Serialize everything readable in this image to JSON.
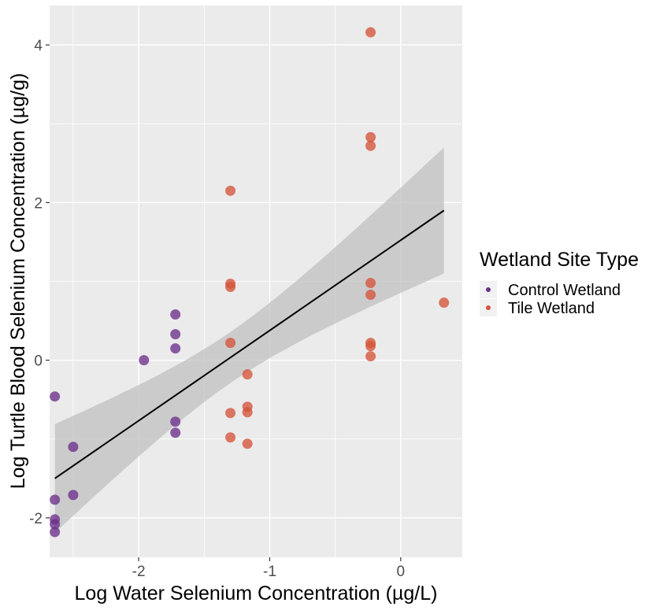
{
  "chart_data": {
    "type": "scatter",
    "xlabel": "Log Water Selenium Concentration (µg/L)",
    "ylabel": "Log Turtle Blood Selenium Concentration (µg/g)",
    "xlim": [
      -2.68,
      0.47
    ],
    "ylim": [
      -2.5,
      4.5
    ],
    "x_ticks": [
      -2,
      -1,
      0
    ],
    "x_tick_labels": [
      "-2",
      "-1",
      "0"
    ],
    "y_ticks": [
      -2,
      0,
      2,
      4
    ],
    "y_tick_labels": [
      "-2",
      "0",
      "2",
      "4"
    ],
    "grid": true,
    "legend": {
      "title": "Wetland Site Type",
      "position": "right",
      "entries": [
        "Control Wetland",
        "Tile Wetland"
      ]
    },
    "colors": {
      "Control Wetland": "#6b2f8a",
      "Tile Wetland": "#d4533a",
      "panel": "#ebebeb",
      "grid": "#ffffff",
      "ribbon": "#bdbdbd",
      "fit_line": "#000000"
    },
    "series": [
      {
        "name": "Control Wetland",
        "points": [
          [
            -2.64,
            -0.46
          ],
          [
            -2.64,
            -1.77
          ],
          [
            -2.64,
            -2.02
          ],
          [
            -2.64,
            -2.08
          ],
          [
            -2.64,
            -2.18
          ],
          [
            -2.5,
            -1.1
          ],
          [
            -2.5,
            -1.71
          ],
          [
            -1.96,
            0.0
          ],
          [
            -1.72,
            0.58
          ],
          [
            -1.72,
            0.33
          ],
          [
            -1.72,
            0.15
          ],
          [
            -1.72,
            -0.78
          ],
          [
            -1.72,
            -0.92
          ]
        ]
      },
      {
        "name": "Tile Wetland",
        "points": [
          [
            -1.3,
            2.15
          ],
          [
            -1.3,
            0.97
          ],
          [
            -1.3,
            0.93
          ],
          [
            -1.3,
            0.22
          ],
          [
            -1.3,
            -0.67
          ],
          [
            -1.3,
            -0.98
          ],
          [
            -1.17,
            -0.18
          ],
          [
            -1.17,
            -0.59
          ],
          [
            -1.17,
            -0.66
          ],
          [
            -1.17,
            -1.06
          ],
          [
            -0.23,
            4.16
          ],
          [
            -0.23,
            2.83
          ],
          [
            -0.23,
            2.72
          ],
          [
            -0.23,
            0.98
          ],
          [
            -0.23,
            0.83
          ],
          [
            -0.23,
            0.22
          ],
          [
            -0.23,
            0.18
          ],
          [
            -0.23,
            0.05
          ],
          [
            0.33,
            0.73
          ]
        ]
      }
    ],
    "fit": {
      "type": "linear",
      "x": [
        -2.64,
        0.33
      ],
      "y": [
        -1.5,
        1.9
      ],
      "ci_lower": [
        -2.2,
        1.1
      ],
      "ci_upper": [
        -0.82,
        2.7
      ]
    }
  }
}
